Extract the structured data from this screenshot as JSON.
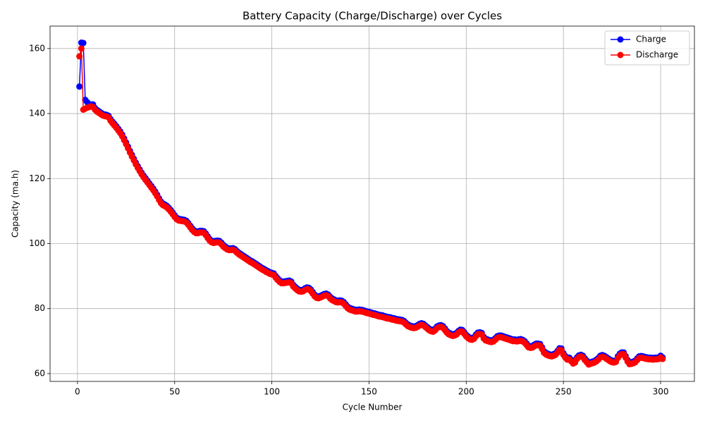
{
  "chart_data": {
    "type": "line",
    "title": "Battery Capacity (Charge/Discharge) over Cycles",
    "xlabel": "Cycle Number",
    "ylabel": "Capacity (ma.h)",
    "x": [
      1,
      2,
      3,
      4,
      5,
      6,
      7,
      8,
      9,
      10,
      11,
      12,
      13,
      14,
      15,
      16,
      17,
      18,
      19,
      20,
      21,
      22,
      23,
      24,
      25,
      26,
      27,
      28,
      29,
      30,
      31,
      32,
      33,
      34,
      35,
      36,
      37,
      38,
      39,
      40,
      41,
      42,
      43,
      44,
      45,
      46,
      47,
      48,
      49,
      50,
      51,
      52,
      53,
      54,
      55,
      56,
      57,
      58,
      59,
      60,
      61,
      62,
      63,
      64,
      65,
      66,
      67,
      68,
      69,
      70,
      71,
      72,
      73,
      74,
      75,
      76,
      77,
      78,
      79,
      80,
      81,
      82,
      83,
      84,
      85,
      86,
      87,
      88,
      89,
      90,
      91,
      92,
      93,
      94,
      95,
      96,
      97,
      98,
      99,
      100,
      101,
      102,
      103,
      104,
      105,
      106,
      107,
      108,
      109,
      110,
      111,
      112,
      113,
      114,
      115,
      116,
      117,
      118,
      119,
      120,
      121,
      122,
      123,
      124,
      125,
      126,
      127,
      128,
      129,
      130,
      131,
      132,
      133,
      134,
      135,
      136,
      137,
      138,
      139,
      140,
      141,
      142,
      143,
      144,
      145,
      146,
      147,
      148,
      149,
      150,
      151,
      152,
      153,
      154,
      155,
      156,
      157,
      158,
      159,
      160,
      161,
      162,
      163,
      164,
      165,
      166,
      167,
      168,
      169,
      170,
      171,
      172,
      173,
      174,
      175,
      176,
      177,
      178,
      179,
      180,
      181,
      182,
      183,
      184,
      185,
      186,
      187,
      188,
      189,
      190,
      191,
      192,
      193,
      194,
      195,
      196,
      197,
      198,
      199,
      200,
      201,
      202,
      203,
      204,
      205,
      206,
      207,
      208,
      209,
      210,
      211,
      212,
      213,
      214,
      215,
      216,
      217,
      218,
      219,
      220,
      221,
      222,
      223,
      224,
      225,
      226,
      227,
      228,
      229,
      230,
      231,
      232,
      233,
      234,
      235,
      236,
      237,
      238,
      239,
      240,
      241,
      242,
      243,
      244,
      245,
      246,
      247,
      248,
      249,
      250,
      251,
      252,
      253,
      254,
      255,
      256,
      257,
      258,
      259,
      260,
      261,
      262,
      263,
      264,
      265,
      266,
      267,
      268,
      269,
      270,
      271,
      272,
      273,
      274,
      275,
      276,
      277,
      278,
      279,
      280,
      281,
      282,
      283,
      284,
      285,
      286,
      287,
      288,
      289,
      290,
      291,
      292,
      293,
      294,
      295,
      296,
      297,
      298,
      299,
      300,
      301
    ],
    "series": [
      {
        "name": "Charge",
        "color": "#0000ff",
        "values": [
          148.3,
          161.8,
          161.7,
          144.2,
          143.5,
          142.6,
          142.8,
          142.8,
          141.7,
          141.1,
          140.7,
          140.3,
          139.9,
          139.7,
          139.6,
          139.3,
          138.3,
          137.5,
          136.8,
          136.1,
          135.3,
          134.5,
          133.5,
          132.3,
          131.1,
          129.8,
          128.5,
          127.3,
          126.1,
          124.9,
          123.8,
          122.8,
          121.8,
          120.9,
          120.1,
          119.3,
          118.5,
          117.7,
          116.9,
          116,
          115,
          113.9,
          112.9,
          112.3,
          112,
          111.6,
          111,
          110.3,
          109.5,
          108.7,
          108,
          107.6,
          107.5,
          107.4,
          107.3,
          107,
          106.3,
          105.5,
          104.7,
          104.1,
          103.7,
          103.7,
          103.9,
          103.9,
          103.8,
          103.1,
          102.2,
          101.4,
          100.9,
          100.7,
          100.8,
          100.9,
          100.8,
          100.3,
          99.6,
          99.1,
          98.7,
          98.5,
          98.5,
          98.6,
          98.3,
          97.7,
          97.2,
          96.8,
          96.4,
          96,
          95.6,
          95.2,
          94.8,
          94.5,
          94.1,
          93.7,
          93.3,
          92.9,
          92.5,
          92.2,
          91.8,
          91.5,
          91.2,
          91,
          90.8,
          90,
          89.3,
          88.7,
          88.3,
          88.3,
          88.4,
          88.5,
          88.6,
          88.3,
          87.3,
          86.7,
          86.2,
          85.8,
          85.7,
          85.8,
          86.2,
          86.5,
          86.4,
          85.9,
          85.1,
          84.3,
          83.8,
          83.7,
          83.9,
          84.2,
          84.5,
          84.6,
          84.3,
          83.6,
          83.1,
          82.8,
          82.5,
          82.4,
          82.5,
          82.4,
          82,
          81.3,
          80.6,
          80.2,
          80,
          79.8,
          79.6,
          79.6,
          79.7,
          79.6,
          79.5,
          79.3,
          79.1,
          79,
          78.8,
          78.6,
          78.5,
          78.3,
          78.1,
          78,
          77.9,
          77.7,
          77.5,
          77.4,
          77.3,
          77.1,
          77,
          76.8,
          76.7,
          76.6,
          76.5,
          76.2,
          75.6,
          75.1,
          74.8,
          74.6,
          74.5,
          74.6,
          74.9,
          75.3,
          75.5,
          75.3,
          74.8,
          74.3,
          73.8,
          73.5,
          73.4,
          73.8,
          74.5,
          74.8,
          74.9,
          74.6,
          73.9,
          73.1,
          72.6,
          72.3,
          72.1,
          72.2,
          72.5,
          73.1,
          73.5,
          73.4,
          72.7,
          71.9,
          71.4,
          71,
          70.9,
          71.2,
          72,
          72.6,
          72.7,
          72.5,
          71.3,
          70.7,
          70.5,
          70.3,
          70.2,
          70.4,
          70.9,
          71.5,
          71.7,
          71.7,
          71.5,
          71.3,
          71.1,
          70.9,
          70.7,
          70.5,
          70.5,
          70.4,
          70.5,
          70.6,
          70.4,
          70,
          69.3,
          68.6,
          68.4,
          68.5,
          68.9,
          69.2,
          69.2,
          69.1,
          68.1,
          66.9,
          66.4,
          66.1,
          65.9,
          65.8,
          66,
          66.3,
          67,
          67.8,
          67.7,
          66.3,
          65.4,
          64.8,
          64.9,
          64.3,
          63.6,
          63.9,
          65,
          65.6,
          65.8,
          65.5,
          64.7,
          64,
          63.3,
          63.5,
          63.7,
          63.9,
          64.3,
          64.8,
          65.5,
          65.7,
          65.5,
          65.1,
          64.7,
          64.3,
          64,
          63.9,
          64.1,
          65.3,
          66.1,
          66.5,
          66.5,
          65.4,
          64.2,
          63.4,
          63.5,
          63.7,
          64,
          64.7,
          65.3,
          65.4,
          65.3,
          65.1,
          65,
          64.9,
          64.9,
          64.8,
          64.9,
          64.9,
          65,
          65.5,
          65
        ]
      },
      {
        "name": "Discharge",
        "color": "#ff0000",
        "values": [
          157.6,
          160,
          141.2,
          141.5,
          141.8,
          142,
          142.2,
          142,
          141.2,
          140.6,
          140.2,
          139.8,
          139.4,
          139.2,
          139.1,
          138.8,
          137.8,
          137,
          136.3,
          135.6,
          134.8,
          134,
          133,
          131.8,
          130.6,
          129.3,
          128,
          126.8,
          125.6,
          124.4,
          123.3,
          122.3,
          121.3,
          120.4,
          119.6,
          118.8,
          118,
          117.2,
          116.4,
          115.5,
          114.5,
          113.4,
          112.4,
          111.8,
          111.5,
          111.1,
          110.5,
          109.8,
          109,
          108.2,
          107.5,
          107.1,
          107,
          106.9,
          106.8,
          106.5,
          105.8,
          105,
          104.2,
          103.6,
          103.2,
          103.2,
          103.4,
          103.4,
          103.3,
          102.6,
          101.7,
          100.9,
          100.4,
          100.2,
          100.3,
          100.4,
          100.3,
          99.8,
          99.1,
          98.6,
          98.2,
          98,
          98,
          98.1,
          97.8,
          97.2,
          96.7,
          96.3,
          95.9,
          95.5,
          95.1,
          94.7,
          94.3,
          94,
          93.6,
          93.2,
          92.8,
          92.4,
          92,
          91.7,
          91.3,
          91,
          90.7,
          90.5,
          90.3,
          89.5,
          88.8,
          88.2,
          87.8,
          87.8,
          87.9,
          88,
          88.1,
          87.8,
          86.8,
          86.2,
          85.7,
          85.3,
          85.2,
          85.3,
          85.7,
          86,
          85.9,
          85.4,
          84.6,
          83.8,
          83.3,
          83.2,
          83.4,
          83.7,
          84,
          84.1,
          83.8,
          83.1,
          82.6,
          82.3,
          82,
          81.9,
          82,
          81.9,
          81.5,
          80.8,
          80.1,
          79.7,
          79.5,
          79.3,
          79.1,
          79.1,
          79.2,
          79.1,
          79,
          78.8,
          78.6,
          78.5,
          78.3,
          78.1,
          78,
          77.8,
          77.6,
          77.5,
          77.4,
          77.2,
          77,
          76.9,
          76.8,
          76.6,
          76.5,
          76.3,
          76.2,
          76.1,
          76,
          75.7,
          75.1,
          74.6,
          74.3,
          74.1,
          74,
          74.1,
          74.4,
          74.8,
          75,
          74.8,
          74.3,
          73.8,
          73.3,
          73,
          72.9,
          73.3,
          74,
          74.3,
          74.4,
          74.1,
          73.4,
          72.6,
          72.1,
          71.8,
          71.6,
          71.7,
          72,
          72.6,
          73,
          72.9,
          72.2,
          71.4,
          70.9,
          70.5,
          70.4,
          70.7,
          71.5,
          72.1,
          72.2,
          72,
          70.8,
          70.2,
          70,
          69.8,
          69.7,
          69.9,
          70.4,
          71,
          71.2,
          71.2,
          71,
          70.8,
          70.6,
          70.4,
          70.2,
          70,
          70,
          69.9,
          70,
          70.1,
          69.9,
          69.5,
          68.8,
          68.1,
          67.9,
          68,
          68.4,
          68.7,
          68.7,
          68.6,
          67.6,
          66.4,
          65.9,
          65.6,
          65.4,
          65.3,
          65.5,
          65.8,
          66.5,
          67.3,
          67.2,
          65.8,
          64.9,
          64.3,
          64.4,
          63.8,
          63.1,
          63.4,
          64.5,
          65.1,
          65.3,
          65,
          64.2,
          63.5,
          62.8,
          63,
          63.2,
          63.4,
          63.8,
          64.3,
          65,
          65.2,
          65,
          64.6,
          64.2,
          63.8,
          63.5,
          63.4,
          63.6,
          64.8,
          65.6,
          66,
          66,
          64.9,
          63.7,
          62.9,
          63,
          63.2,
          63.5,
          64.2,
          64.8,
          64.9,
          64.8,
          64.6,
          64.5,
          64.4,
          64.4,
          64.3,
          64.4,
          64.4,
          64.5,
          65,
          64.5
        ]
      }
    ],
    "xlim": [
      -14.1,
      317.4
    ],
    "ylim": [
      57.6,
      166.9
    ],
    "xticks": [
      0,
      50,
      100,
      150,
      200,
      250,
      300
    ],
    "yticks": [
      60,
      80,
      100,
      120,
      140,
      160
    ],
    "grid": true,
    "legend": "upper right"
  }
}
